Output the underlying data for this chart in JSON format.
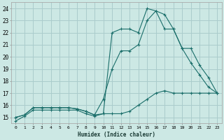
{
  "xlabel": "Humidex (Indice chaleur)",
  "bg_color": "#cce8e4",
  "grid_color": "#aacccc",
  "line_color": "#1a6e6a",
  "xlim": [
    -0.5,
    23.5
  ],
  "ylim": [
    14.5,
    24.5
  ],
  "xticks": [
    0,
    1,
    2,
    3,
    4,
    5,
    6,
    7,
    8,
    9,
    10,
    11,
    12,
    13,
    14,
    15,
    16,
    17,
    18,
    19,
    20,
    21,
    22,
    23
  ],
  "yticks": [
    15,
    16,
    17,
    18,
    19,
    20,
    21,
    22,
    23,
    24
  ],
  "line1_y": [
    14.7,
    15.1,
    15.6,
    15.6,
    15.6,
    15.6,
    15.6,
    15.6,
    15.3,
    15.1,
    15.3,
    15.3,
    15.3,
    15.5,
    16.0,
    16.5,
    17.0,
    17.2,
    17.0,
    17.0,
    17.0,
    17.0,
    17.0,
    17.0
  ],
  "line2_y": [
    15.0,
    15.2,
    15.8,
    15.8,
    15.8,
    15.8,
    15.8,
    15.7,
    15.5,
    15.2,
    16.5,
    19.0,
    20.5,
    20.5,
    21.0,
    23.0,
    23.8,
    23.5,
    22.3,
    20.7,
    19.5,
    18.5,
    17.5,
    17.0
  ],
  "line3_y": [
    15.0,
    15.2,
    15.8,
    15.8,
    15.8,
    15.8,
    15.8,
    15.7,
    15.5,
    15.2,
    15.3,
    22.0,
    22.3,
    22.3,
    22.0,
    24.0,
    23.8,
    22.3,
    22.3,
    20.7,
    20.7,
    19.3,
    18.3,
    17.0
  ]
}
